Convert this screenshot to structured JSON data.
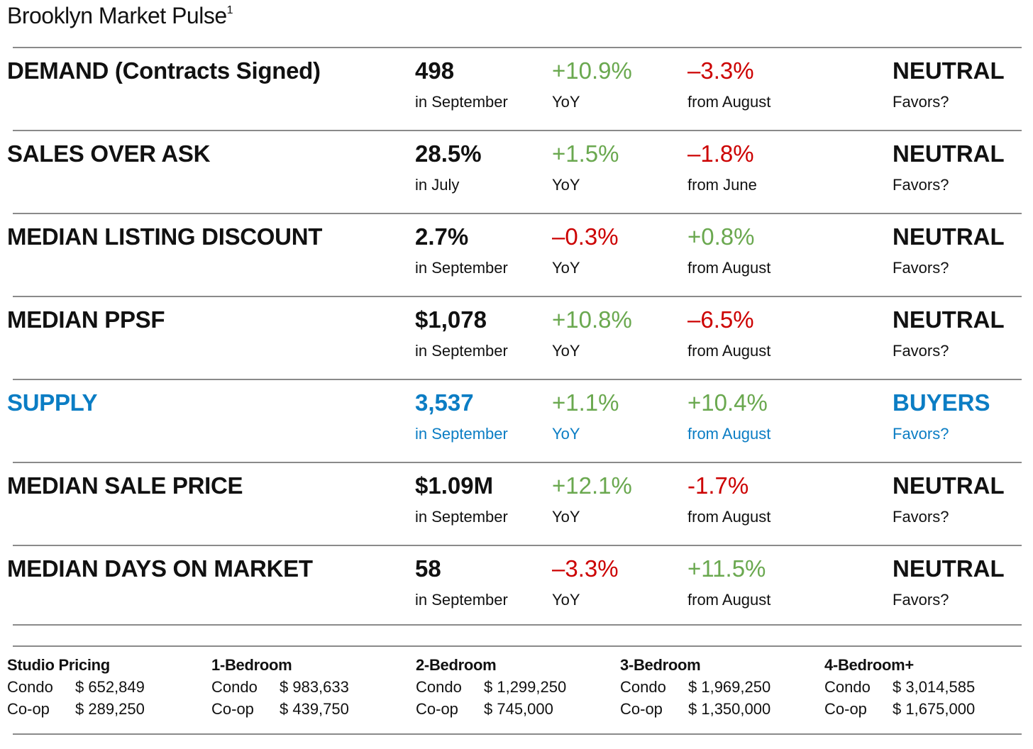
{
  "title": "Brooklyn Market Pulse",
  "title_footnote": "1",
  "colors": {
    "positive": "#6aa84f",
    "negative": "#cc0000",
    "highlight": "#0b7dc4"
  },
  "rows": [
    {
      "label": "DEMAND (Contracts Signed)",
      "value": "498",
      "period": "in September",
      "yoy": "+10.9%",
      "yoy_label": "YoY",
      "yoy_tone": "green",
      "change": "–3.3%",
      "change_label": "from August",
      "change_tone": "red",
      "favors": "NEUTRAL",
      "favors_label": "Favors?",
      "highlight": false
    },
    {
      "label": "SALES OVER ASK",
      "value": "28.5%",
      "period": "in July",
      "yoy": "+1.5%",
      "yoy_label": "YoY",
      "yoy_tone": "green",
      "change": "–1.8%",
      "change_label": "from June",
      "change_tone": "red",
      "favors": "NEUTRAL",
      "favors_label": "Favors?",
      "highlight": false
    },
    {
      "label": "MEDIAN LISTING DISCOUNT",
      "value": "2.7%",
      "period": "in September",
      "yoy": "–0.3%",
      "yoy_label": "YoY",
      "yoy_tone": "red",
      "change": "+0.8%",
      "change_label": "from August",
      "change_tone": "green",
      "favors": "NEUTRAL",
      "favors_label": "Favors?",
      "highlight": false
    },
    {
      "label": "MEDIAN PPSF",
      "value": "$1,078",
      "period": "in September",
      "yoy": "+10.8%",
      "yoy_label": "YoY",
      "yoy_tone": "green",
      "change": "–6.5%",
      "change_label": "from August",
      "change_tone": "red",
      "favors": "NEUTRAL",
      "favors_label": "Favors?",
      "highlight": false
    },
    {
      "label": "SUPPLY",
      "value": "3,537",
      "period": "in September",
      "yoy": "+1.1%",
      "yoy_label": "YoY",
      "yoy_tone": "green",
      "change": "+10.4%",
      "change_label": "from August",
      "change_tone": "green",
      "favors": "BUYERS",
      "favors_label": "Favors?",
      "highlight": true
    },
    {
      "label": "MEDIAN SALE PRICE",
      "value": "$1.09M",
      "period": "in September",
      "yoy": "+12.1%",
      "yoy_label": "YoY",
      "yoy_tone": "green",
      "change": "-1.7%",
      "change_label": "from August",
      "change_tone": "red",
      "favors": "NEUTRAL",
      "favors_label": "Favors?",
      "highlight": false
    },
    {
      "label": "MEDIAN DAYS ON MARKET",
      "value": "58",
      "period": "in September",
      "yoy": "–3.3%",
      "yoy_label": "YoY",
      "yoy_tone": "red",
      "change": "+11.5%",
      "change_label": "from August",
      "change_tone": "green",
      "favors": "NEUTRAL",
      "favors_label": "Favors?",
      "highlight": false
    }
  ],
  "pricing": [
    {
      "heading": "Studio Pricing",
      "condo_label": "Condo",
      "condo": "$ 652,849",
      "coop_label": "Co-op",
      "coop": "$ 289,250"
    },
    {
      "heading": "1-Bedroom",
      "condo_label": "Condo",
      "condo": "$ 983,633",
      "coop_label": "Co-op",
      "coop": "$ 439,750"
    },
    {
      "heading": "2-Bedroom",
      "condo_label": "Condo",
      "condo": "$ 1,299,250",
      "coop_label": "Co-op",
      "coop": "$ 745,000"
    },
    {
      "heading": "3-Bedroom",
      "condo_label": "Condo",
      "condo": "$ 1,969,250",
      "coop_label": "Co-op",
      "coop": "$ 1,350,000"
    },
    {
      "heading": "4-Bedroom+",
      "condo_label": "Condo",
      "condo": "$ 3,014,585",
      "coop_label": "Co-op",
      "coop": "$ 1,675,000"
    }
  ]
}
